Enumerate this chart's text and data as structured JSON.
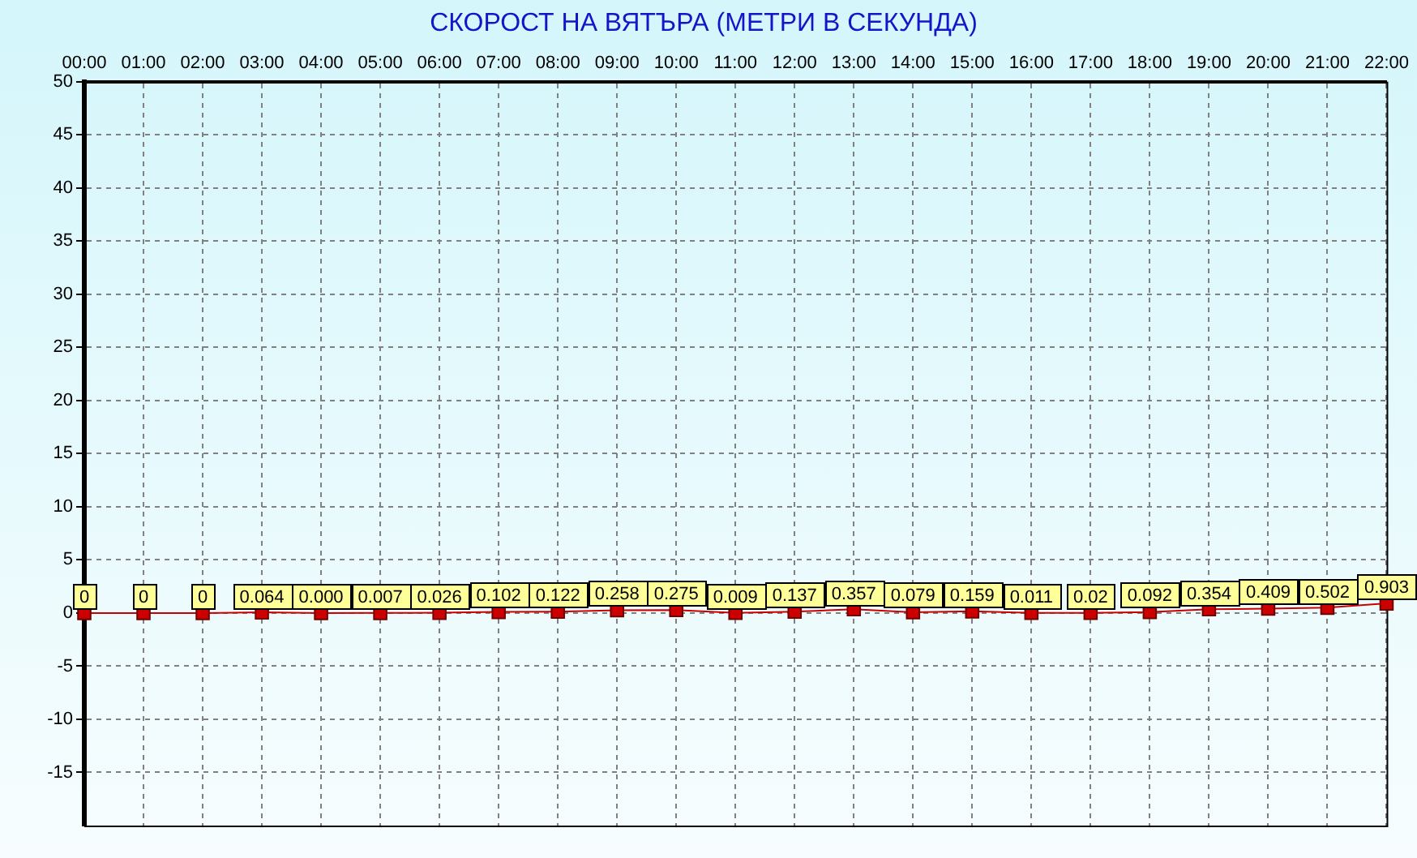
{
  "chart_data": {
    "type": "line",
    "title": "СКОРОСТ НА ВЯТЪРА (МЕТРИ В СЕКУНДА)",
    "categories": [
      "00:00",
      "01:00",
      "02:00",
      "03:00",
      "04:00",
      "05:00",
      "06:00",
      "07:00",
      "08:00",
      "09:00",
      "10:00",
      "11:00",
      "12:00",
      "13:00",
      "14:00",
      "15:00",
      "16:00",
      "17:00",
      "18:00",
      "19:00",
      "20:00",
      "21:00",
      "22:00"
    ],
    "values": [
      0,
      0,
      0,
      0.064,
      0,
      0.007,
      0.026,
      0.102,
      0.122,
      0.258,
      0.275,
      0.009,
      0.137,
      0.357,
      0.079,
      0.159,
      0.011,
      0.02,
      0.092,
      0.354,
      0.409,
      0.502,
      0.903
    ],
    "value_labels": [
      "0",
      "0",
      "0",
      "0.064",
      "0.000",
      "0.007",
      "0.026",
      "0.102",
      "0.122",
      "0.258",
      "0.275",
      "0.009",
      "0.137",
      "0.357",
      "0.079",
      "0.159",
      "0.011",
      "0.02",
      "0.092",
      "0.354",
      "0.409",
      "0.502",
      "0.903"
    ],
    "color": "#cc0000",
    "ylim": [
      -20,
      50
    ],
    "yticks": [
      -15,
      -10,
      -5,
      0,
      5,
      10,
      15,
      20,
      25,
      30,
      35,
      40,
      45,
      50
    ],
    "grid": true,
    "marker": "square",
    "line_style": "solid"
  }
}
